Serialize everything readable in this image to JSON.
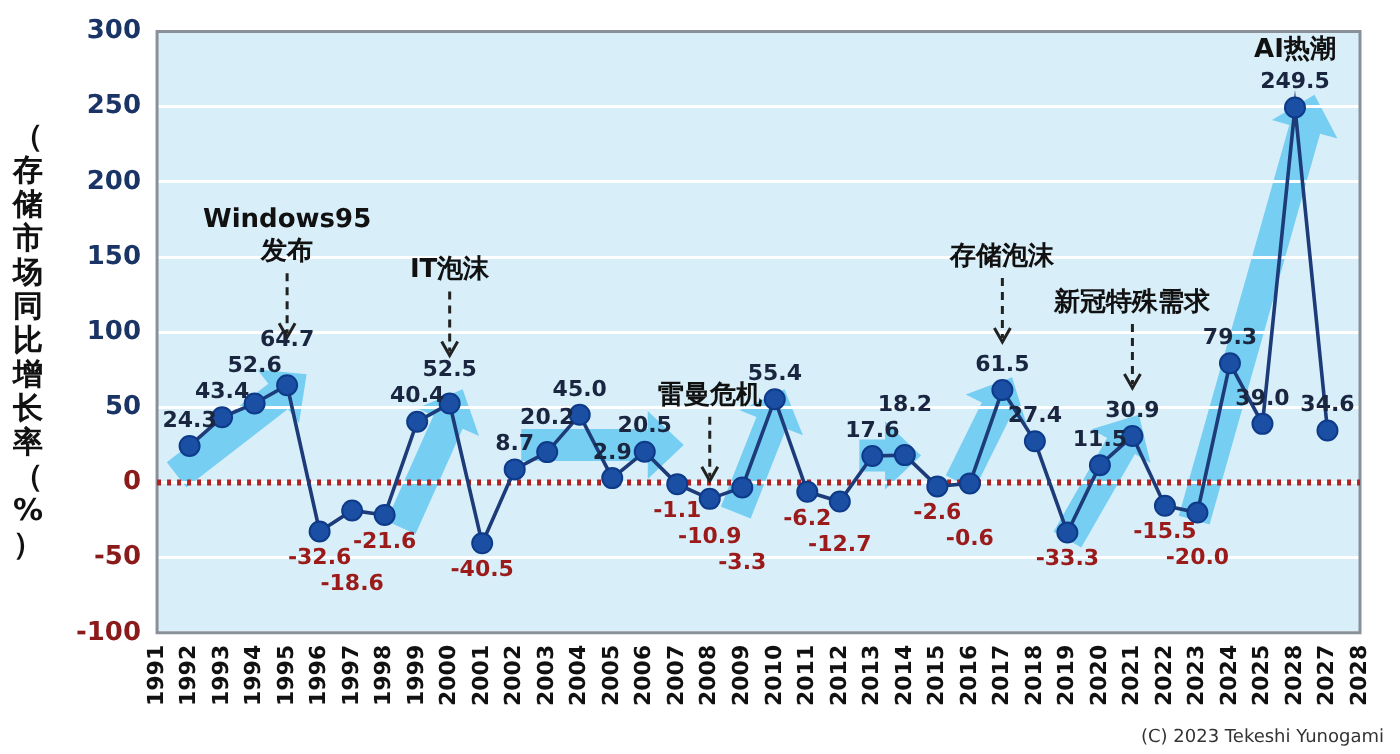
{
  "chart_data": {
    "type": "line",
    "ylabel": "（存储市场同比增长率（%）",
    "categories": [
      "1991",
      "1992",
      "1993",
      "1994",
      "1995",
      "1996",
      "1997",
      "1998",
      "1999",
      "2000",
      "2001",
      "2002",
      "2003",
      "2004",
      "2005",
      "2006",
      "2007",
      "2008",
      "2009",
      "2010",
      "2011",
      "2012",
      "2013",
      "2014",
      "2015",
      "2016",
      "2017",
      "2018",
      "2019",
      "2020",
      "2021",
      "2022",
      "2023",
      "2024",
      "2025",
      "2028",
      "2027",
      "2028"
    ],
    "values": [
      null,
      24.3,
      43.4,
      52.6,
      64.7,
      -32.6,
      -18.6,
      -21.6,
      40.4,
      52.5,
      -40.5,
      8.7,
      20.2,
      45.0,
      2.9,
      20.5,
      -1.1,
      -10.9,
      -3.3,
      55.4,
      -6.2,
      -12.7,
      17.6,
      18.2,
      -2.6,
      -0.6,
      61.5,
      27.4,
      -33.3,
      11.5,
      30.9,
      -15.5,
      -20.0,
      79.3,
      39.0,
      249.5,
      34.6,
      null
    ],
    "value_labels": [
      null,
      "24.3",
      "43.4",
      "52.6",
      "64.7",
      "-32.6",
      "-18.6",
      "-21.6",
      "40.4",
      "52.5",
      "-40.5",
      "8.7",
      "20.2",
      "45.0",
      "2.9",
      "20.5",
      "-1.1",
      "-10.9",
      "-3.3",
      "55.4",
      "-6.2",
      "-12.7",
      "17.6",
      "18.2",
      "-2.6",
      "-0.6",
      "61.5",
      "27.4",
      "-33.3",
      "11.5",
      "30.9",
      "-15.5",
      "-20.0",
      "79.3",
      "39.0",
      "249.5",
      "34.6",
      null
    ],
    "color": "#1a4fa3",
    "marker": "circle",
    "line_style": "solid",
    "ylim": [
      -100,
      300
    ],
    "yticks": [
      -100,
      -50,
      0,
      50,
      100,
      150,
      200,
      250,
      300
    ],
    "grid": "y",
    "ref_lines": [
      {
        "axis": "y",
        "value": 0,
        "color": "#b22222",
        "line_style": "dotted"
      }
    ],
    "annotations": [
      {
        "text": "Windows95\n发布",
        "x": "1995"
      },
      {
        "text": "IT泡沫",
        "x": "2000"
      },
      {
        "text": "雷曼危机",
        "x": "2008"
      },
      {
        "text": "存储泡沫",
        "x": "2017"
      },
      {
        "text": "新冠特殊需求",
        "x": "2021"
      },
      {
        "text": "AI热潮",
        "x": "2028",
        "y": 249.5
      },
      "(C) 2023 Tekeshi Yunogami"
    ]
  }
}
